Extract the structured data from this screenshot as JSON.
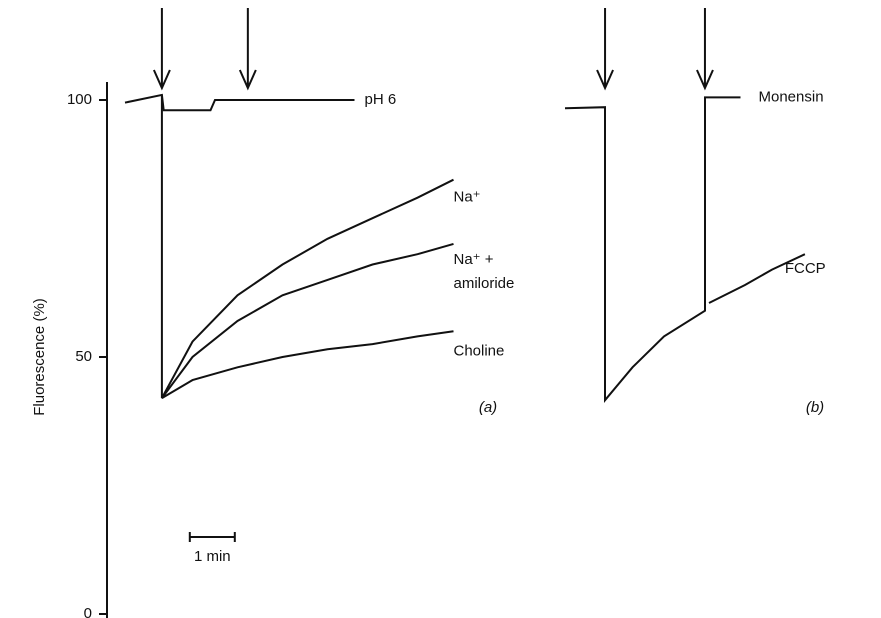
{
  "chart_data": [
    {
      "type": "line",
      "ylabel": "Fluorescence (%)",
      "panel_label": "(a)",
      "ylim": [
        0,
        100
      ],
      "yticks": [
        0,
        50,
        100
      ],
      "xlim": [
        0,
        8
      ],
      "arrows": [
        0.82,
        2.73
      ],
      "scale_bar": {
        "x": [
          1.44,
          2.44
        ],
        "label": "1 min"
      },
      "series": [
        {
          "name": "pH 6",
          "color": "#111111",
          "x": [
            0,
            0.82,
            0.86,
            1.9,
            2.0,
            5.1
          ],
          "values": [
            99.5,
            101,
            98,
            98,
            100,
            100
          ]
        },
        {
          "name": "Na⁺",
          "color": "#111111",
          "x": [
            0.82,
            0.82,
            1.5,
            2.5,
            3.5,
            4.5,
            5.5,
            6.5,
            7.3
          ],
          "values": [
            101,
            42,
            53,
            62,
            68,
            73,
            77,
            81,
            84.5
          ]
        },
        {
          "name": "Na⁺ + amiloride",
          "color": "#111111",
          "x": [
            0.82,
            1.5,
            2.5,
            3.5,
            4.5,
            5.5,
            6.5,
            7.3
          ],
          "values": [
            42,
            50,
            57,
            62,
            65,
            68,
            70,
            72
          ]
        },
        {
          "name": "Choline",
          "color": "#111111",
          "x": [
            0.82,
            1.5,
            2.5,
            3.5,
            4.5,
            5.5,
            6.5,
            7.3
          ],
          "values": [
            42,
            45.5,
            48,
            50,
            51.5,
            52.5,
            54,
            55
          ]
        }
      ]
    },
    {
      "type": "line",
      "panel_label": "(b)",
      "ylim": [
        0,
        100
      ],
      "xlim": [
        0,
        6
      ],
      "arrows": [
        0.89,
        3.11
      ],
      "series": [
        {
          "name": "Monensin",
          "color": "#111111",
          "x": [
            0,
            0.89,
            0.89,
            1.5,
            2.2,
            3.11,
            3.11,
            3.9
          ],
          "values": [
            98.4,
            98.6,
            41.6,
            48,
            54,
            59,
            100.5,
            100.5
          ]
        },
        {
          "name": "FCCP",
          "color": "#111111",
          "x": [
            3.2,
            4,
            4.6,
            5.33
          ],
          "values": [
            60.5,
            64,
            67,
            70
          ]
        }
      ]
    }
  ]
}
